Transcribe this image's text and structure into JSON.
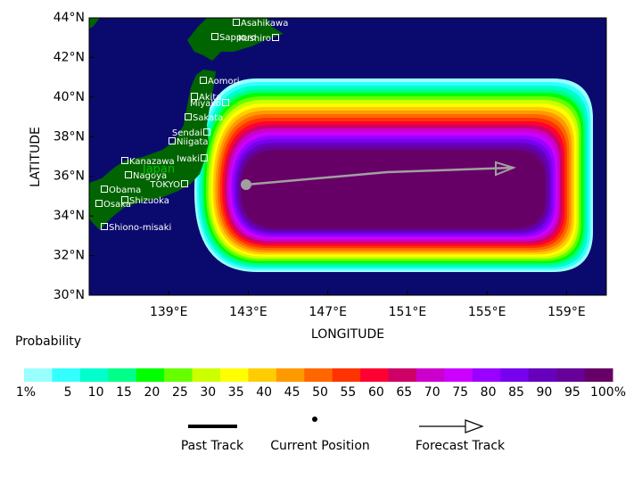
{
  "chart_data": {
    "type": "probability-map",
    "xlabel": "LONGITUDE",
    "ylabel": "LATITUDE",
    "xlim": [
      135,
      161
    ],
    "ylim": [
      30,
      44
    ],
    "xticks": [
      {
        "value": 139,
        "label": "139°E"
      },
      {
        "value": 143,
        "label": "143°E"
      },
      {
        "value": 147,
        "label": "147°E"
      },
      {
        "value": 151,
        "label": "151°E"
      },
      {
        "value": 155,
        "label": "155°E"
      },
      {
        "value": 159,
        "label": "159°E"
      }
    ],
    "yticks": [
      {
        "value": 30,
        "label": "30°N"
      },
      {
        "value": 32,
        "label": "32°N"
      },
      {
        "value": 34,
        "label": "34°N"
      },
      {
        "value": 36,
        "label": "36°N"
      },
      {
        "value": 38,
        "label": "38°N"
      },
      {
        "value": 40,
        "label": "40°N"
      },
      {
        "value": 42,
        "label": "42°N"
      },
      {
        "value": 44,
        "label": "44°N"
      }
    ],
    "region_label": "Japan",
    "cities": [
      "Asahikawa",
      "Sapporo",
      "Kushiro",
      "Aomori",
      "Akita",
      "Miyako",
      "Sakata",
      "Sendai",
      "Niigata",
      "Iwaki",
      "Kanazawa",
      "Nagoya",
      "Obama",
      "TOKYO",
      "Shizuoka",
      "Osaka",
      "Shiono-misaki"
    ],
    "legend_title": "Probability",
    "legend_colors": [
      "#99ffff",
      "#33ffff",
      "#00ffcc",
      "#00ff88",
      "#00ff00",
      "#66ff00",
      "#ccff00",
      "#ffff00",
      "#ffcc00",
      "#ff9900",
      "#ff6600",
      "#ff3300",
      "#ff0033",
      "#cc0066",
      "#cc00cc",
      "#cc00ff",
      "#9900ff",
      "#7700ee",
      "#6600bb",
      "#660099",
      "#660066"
    ],
    "legend_labels": [
      "1%",
      "5",
      "10",
      "15",
      "20",
      "25",
      "30",
      "35",
      "40",
      "45",
      "50",
      "55",
      "60",
      "65",
      "70",
      "75",
      "80",
      "85",
      "90",
      "95",
      "100%"
    ],
    "track_legend": [
      "Past Track",
      "Current Position",
      "Forecast Track"
    ]
  }
}
